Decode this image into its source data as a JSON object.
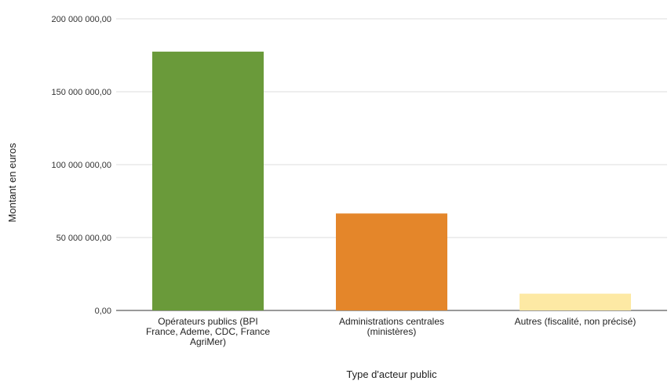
{
  "chart_data": {
    "type": "bar",
    "title": "",
    "xlabel": "Type d'acteur public",
    "ylabel": "Montant en euros",
    "ylim": [
      0,
      200000000
    ],
    "yticks": [
      {
        "value": 0,
        "label": "0,00"
      },
      {
        "value": 50000000,
        "label": "50 000 000,00"
      },
      {
        "value": 100000000,
        "label": "100 000 000,00"
      },
      {
        "value": 150000000,
        "label": "150 000 000,00"
      },
      {
        "value": 200000000,
        "label": "200 000 000,00"
      }
    ],
    "grid": true,
    "categories": [
      "Opérateurs publics (BPI France, Ademe, CDC, France AgriMer)",
      "Administrations centrales (ministères)",
      "Autres (fiscalité, non précisé)"
    ],
    "category_lines": [
      [
        "Opérateurs publics (BPI",
        "France, Ademe, CDC, France",
        "AgriMer)"
      ],
      [
        "Administrations centrales",
        "(ministères)"
      ],
      [
        "Autres (fiscalité, non précisé)"
      ]
    ],
    "values": [
      177500000,
      66500000,
      11500000
    ],
    "colors": [
      "#6a9a3a",
      "#e4862a",
      "#fde9a4"
    ]
  }
}
